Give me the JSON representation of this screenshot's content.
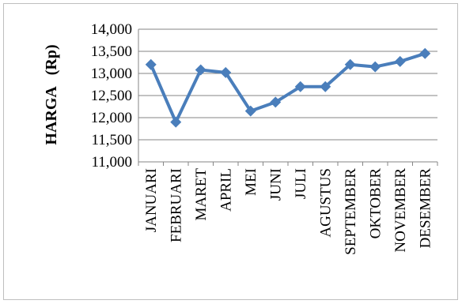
{
  "chart_data": {
    "type": "line",
    "title": "",
    "xlabel": "",
    "ylabel": "HARGA   (Rp)",
    "categories": [
      "JANUARI",
      "FEBRUARI",
      "MARET",
      "APRIL",
      "MEI",
      "JUNI",
      "JULI",
      "AGUSTUS",
      "SEPTEMBER",
      "OKTOBER",
      "NOVEMBER",
      "DESEMBER"
    ],
    "series": [
      {
        "values": [
          13200,
          11900,
          13080,
          13020,
          12150,
          12350,
          12700,
          12700,
          13200,
          13150,
          13270,
          13450
        ]
      }
    ],
    "ylim": [
      11000,
      14000
    ],
    "yticks": [
      11000,
      11500,
      12000,
      12500,
      13000,
      13500,
      14000
    ],
    "ytick_labels": [
      "11,000",
      "11,500",
      "12,000",
      "12,500",
      "13,000",
      "13,500",
      "14,000"
    ],
    "grid": true,
    "legend": "none",
    "colors": {
      "line": "#4a7ebb",
      "grid": "#868686",
      "axis": "#868686"
    }
  }
}
